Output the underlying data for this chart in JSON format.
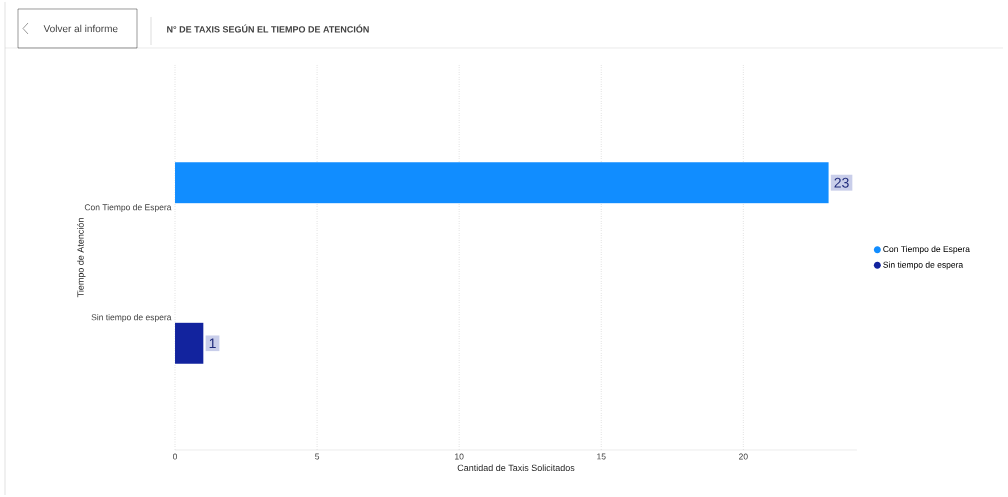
{
  "chart_data": {
    "type": "bar",
    "orientation": "horizontal",
    "title": "N° DE TAXIS SEGÚN EL TIEMPO DE ATENCIÓN",
    "xlabel": "Cantidad de Taxis Solicitados",
    "ylabel": "Tiempo de Atención",
    "categories": [
      "Con Tiempo de Espera",
      "Sin tiempo de espera"
    ],
    "series": [
      {
        "name": "Con Tiempo de Espera",
        "color": "#118dff",
        "values": [
          23,
          null
        ]
      },
      {
        "name": "Sin tiempo de espera",
        "color": "#12239e",
        "values": [
          null,
          1
        ]
      }
    ],
    "xlim": [
      0,
      24
    ],
    "xticks": [
      0,
      5,
      10,
      15,
      20
    ],
    "grid": "x",
    "legend": "right",
    "data_labels": true,
    "annotations": [
      "Volver al informe"
    ]
  }
}
